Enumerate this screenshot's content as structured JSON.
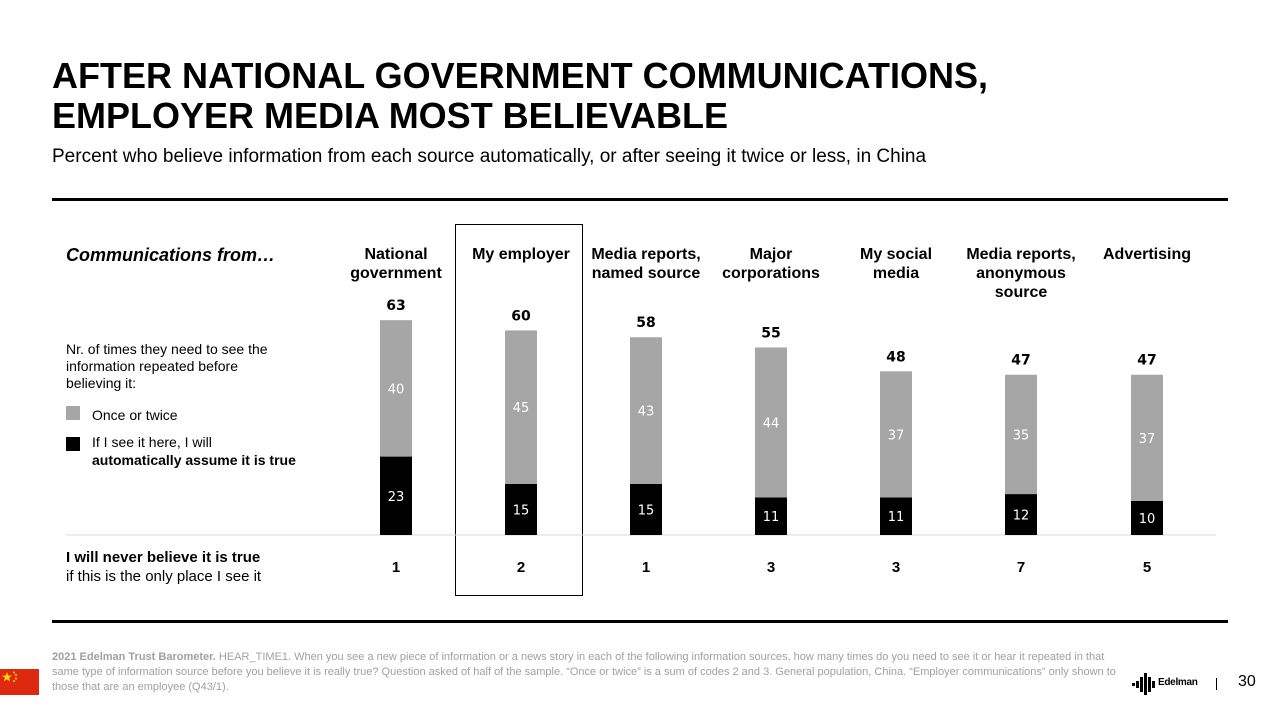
{
  "slide": {
    "title_line1": "AFTER NATIONAL GOVERNMENT COMMUNICATIONS,",
    "title_line2": "EMPLOYER MEDIA MOST BELIEVABLE",
    "subtitle": "Percent who believe information from each source automatically, or after seeing it twice or less, in China",
    "page_number": "30",
    "logo_text": "Edelman"
  },
  "legend": {
    "header": "Communications from…",
    "intro": "Nr. of times they need to see the information repeated before believing it:",
    "once_label": "Once or twice",
    "auto_label_line1": "If I see it here, I will",
    "auto_label_line2": "automatically assume it is true"
  },
  "never_row": {
    "line1": "I will never believe it is true",
    "line2": "if this is the only place I see it"
  },
  "footnote": {
    "lead": "2021 Edelman Trust Barometer.",
    "text": " HEAR_TIME1. When you see a new piece of information or a news story in each of the following information sources, how many times do you need to see it or hear it repeated in that same type of information source before you believe it is really true? Question asked of half of the sample. “Once or twice” is a sum of codes 2 and 3. General population, China. “Employer communications” only shown to those that are an employee (Q43/1)."
  },
  "chart_data": {
    "type": "bar",
    "stacked": true,
    "title": "Percent who believe information from each source automatically, or after seeing it twice or less, in China",
    "categories": [
      [
        "National",
        "government"
      ],
      [
        "My employer"
      ],
      [
        "Media reports,",
        "named source"
      ],
      [
        "Major",
        "corporations"
      ],
      [
        "My social",
        "media"
      ],
      [
        "Media reports,",
        "anonymous",
        "source"
      ],
      [
        "Advertising"
      ]
    ],
    "series": [
      {
        "name": "If I see it here, I will automatically assume it is true",
        "color": "#000000",
        "values": [
          23,
          15,
          15,
          11,
          11,
          12,
          10
        ]
      },
      {
        "name": "Once or twice",
        "color": "#a6a6a6",
        "values": [
          40,
          45,
          43,
          44,
          37,
          35,
          37
        ]
      }
    ],
    "totals": [
      63,
      60,
      58,
      55,
      48,
      47,
      47
    ],
    "never_believe": [
      1,
      2,
      1,
      3,
      3,
      7,
      5
    ],
    "highlighted_category": "My employer",
    "ylim": [
      0,
      70
    ]
  }
}
